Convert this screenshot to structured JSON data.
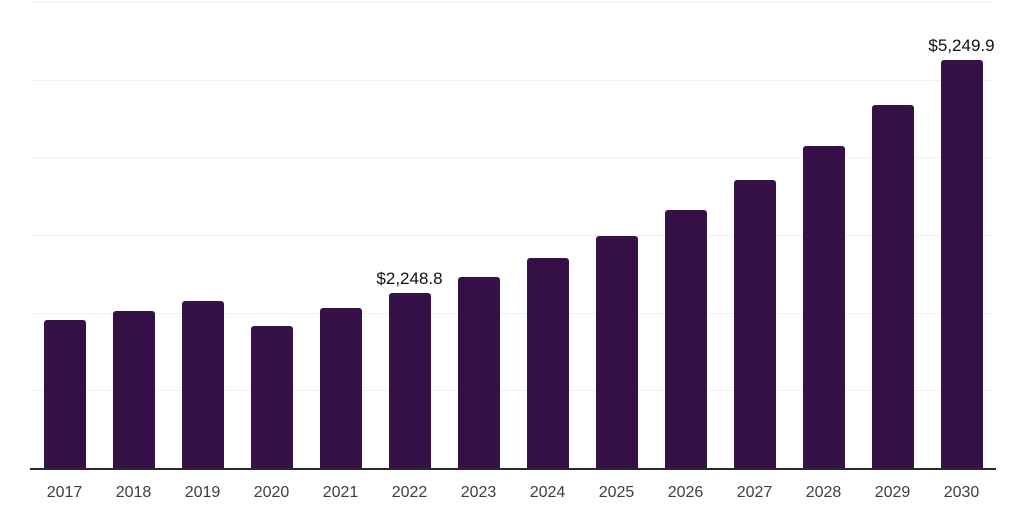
{
  "chart_data": {
    "type": "bar",
    "title": "",
    "xlabel": "",
    "ylabel": "",
    "categories": [
      "2017",
      "2018",
      "2019",
      "2020",
      "2021",
      "2022",
      "2023",
      "2024",
      "2025",
      "2026",
      "2027",
      "2028",
      "2029",
      "2030"
    ],
    "values": [
      1905,
      2020,
      2155,
      1830,
      2060,
      2248.8,
      2465,
      2710,
      2990,
      3320,
      3705,
      4150,
      4675,
      5249.9
    ],
    "data_labels": {
      "2022": "$2,248.8",
      "2030": "$5,249.9"
    },
    "ylim": [
      0,
      6000
    ],
    "gridline_interval": 1000,
    "grid": "horizontal",
    "legend_position": "none",
    "y_tick_labels_visible": false
  },
  "colors": {
    "bar": "#351148",
    "gridline": "#f0f0f0",
    "axis_line": "#2b2b2b",
    "x_tick_label": "#3d3d3d",
    "data_label": "#111111",
    "background": "#ffffff"
  }
}
